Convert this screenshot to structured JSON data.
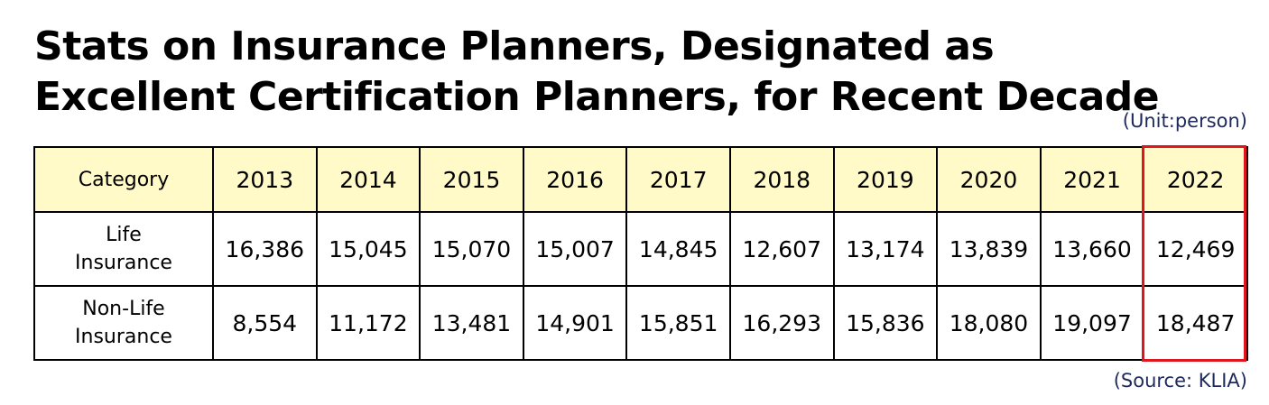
{
  "title": "Stats on Insurance Planners, Designated as Excellent Certification Planners, for Recent Decade",
  "unit_note": "(Unit:person)",
  "source_note": "(Source: KLIA)",
  "colors": {
    "header_bg": "#fffac7",
    "highlight": "#e0161c",
    "note_text": "#1f2a5c"
  },
  "chart_data": {
    "type": "table",
    "header_label": "Category",
    "years": [
      "2013",
      "2014",
      "2015",
      "2016",
      "2017",
      "2018",
      "2019",
      "2020",
      "2021",
      "2022"
    ],
    "rows": [
      {
        "label_line1": "Life",
        "label_line2": "Insurance",
        "values": [
          "16,386",
          "15,045",
          "15,070",
          "15,007",
          "14,845",
          "12,607",
          "13,174",
          "13,839",
          "13,660",
          "12,469"
        ]
      },
      {
        "label_line1": "Non-Life",
        "label_line2": "Insurance",
        "values": [
          "8,554",
          "11,172",
          "13,481",
          "14,901",
          "15,851",
          "16,293",
          "15,836",
          "18,080",
          "19,097",
          "18,487"
        ]
      }
    ],
    "highlighted_year": "2022"
  }
}
